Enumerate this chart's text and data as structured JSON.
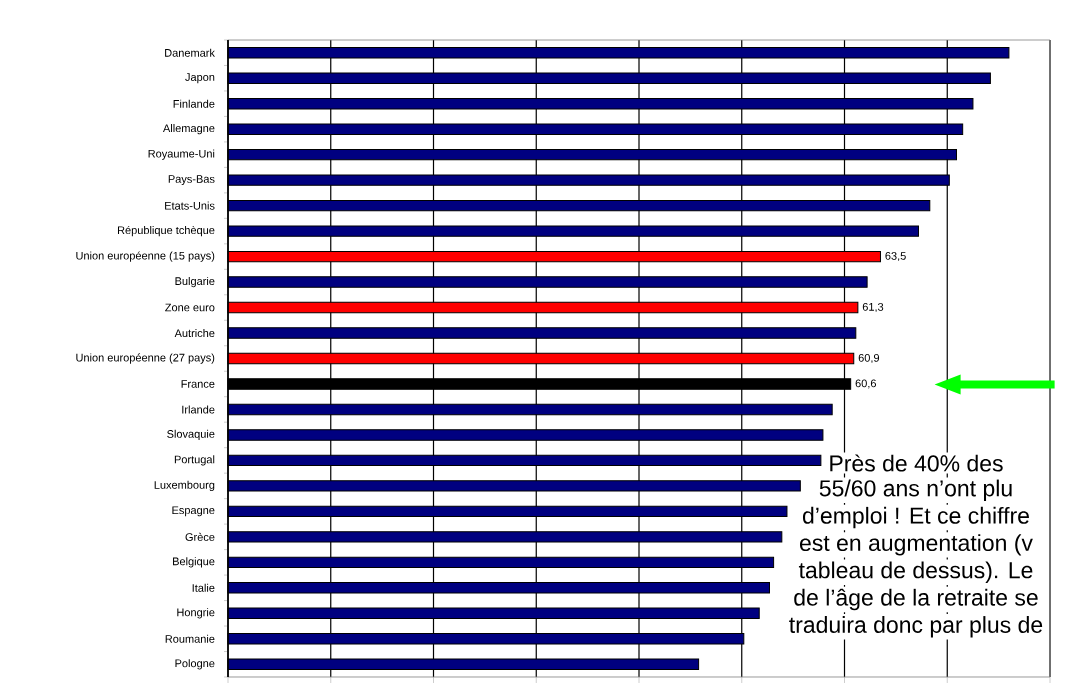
{
  "chart_data": {
    "type": "bar",
    "orientation": "horizontal",
    "categories": [
      "Danemark",
      "Japon",
      "Finlande",
      "Allemagne",
      "Royaume-Uni",
      "Pays-Bas",
      "Etats-Unis",
      "République tchèque",
      "Union européenne (15 pays)",
      "Bulgarie",
      "Zone euro",
      "Autriche",
      "Union européenne (27 pays)",
      "France",
      "Irlande",
      "Slovaquie",
      "Portugal",
      "Luxembourg",
      "Espagne",
      "Grèce",
      "Belgique",
      "Italie",
      "Hongrie",
      "Roumanie",
      "Pologne"
    ],
    "values": [
      76.0,
      74.2,
      72.5,
      71.5,
      70.9,
      70.2,
      68.3,
      67.2,
      63.5,
      62.2,
      61.3,
      61.1,
      60.9,
      60.6,
      58.8,
      57.9,
      57.7,
      55.7,
      54.4,
      53.9,
      53.1,
      52.7,
      51.7,
      50.2,
      45.8
    ],
    "colors": [
      "#000080",
      "#000080",
      "#000080",
      "#000080",
      "#000080",
      "#000080",
      "#000080",
      "#000080",
      "#ff0000",
      "#000080",
      "#ff0000",
      "#000080",
      "#ff0000",
      "#000000",
      "#000080",
      "#000080",
      "#000080",
      "#000080",
      "#000080",
      "#000080",
      "#000080",
      "#000080",
      "#000080",
      "#000080",
      "#000080"
    ],
    "value_labels": [
      null,
      null,
      null,
      null,
      null,
      null,
      null,
      null,
      "63,5",
      null,
      "61,3",
      null,
      "60,9",
      "60,6",
      null,
      null,
      null,
      null,
      null,
      null,
      null,
      null,
      null,
      null,
      null
    ],
    "xlim": [
      0,
      80
    ],
    "xticks": [
      {
        "value": 0,
        "label": null
      },
      {
        "value": 10,
        "label": null
      },
      {
        "value": 20,
        "label": null
      },
      {
        "value": 30,
        "label": null
      },
      {
        "value": 40,
        "label": null
      },
      {
        "value": 50,
        "label": null
      },
      {
        "value": 60,
        "label": null
      },
      {
        "value": 70,
        "label": null
      },
      {
        "value": 80,
        "label": null
      }
    ],
    "tick_labels": "y",
    "grid": "x",
    "annotations": [
      "Près de 40% des",
      "55/60 ans n’ont plu",
      "d’emploi ! Et ce chiffre",
      "est en augmentation (v",
      "tableau de dessus). Le",
      "de l’âge de la retraite se",
      "traduira donc par plus de"
    ]
  }
}
